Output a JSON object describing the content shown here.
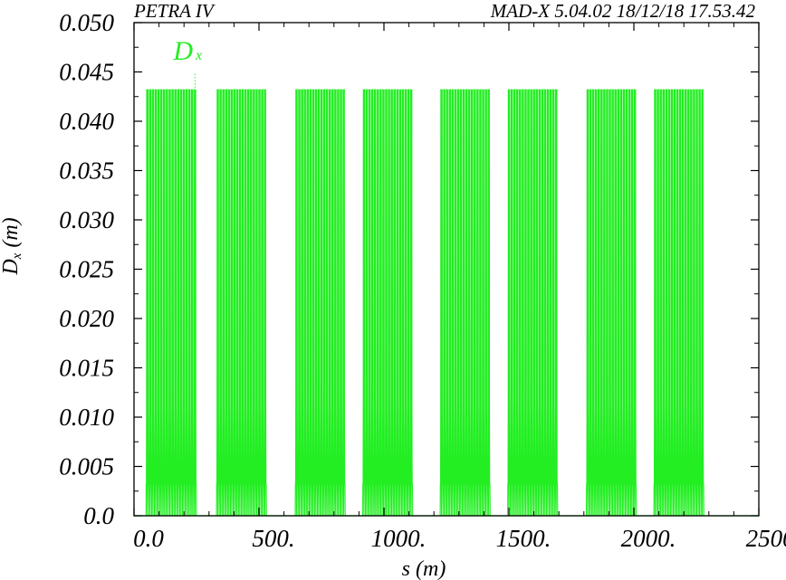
{
  "header": {
    "left": "PETRA IV",
    "right": "MAD-X 5.04.02  18/12/18 17.53.42"
  },
  "chart_data": {
    "type": "line",
    "title": "",
    "xlabel": "s (m)",
    "ylabel": "Dx (m)",
    "xlim": [
      0,
      2500
    ],
    "ylim": [
      0,
      0.05
    ],
    "x_ticks": [
      0,
      500,
      1000,
      1500,
      2000,
      2500
    ],
    "x_tick_labels": [
      "0.0",
      "500.",
      "1000.",
      "1500.",
      "2000.",
      "2500."
    ],
    "y_ticks": [
      0.0,
      0.005,
      0.01,
      0.015,
      0.02,
      0.025,
      0.03,
      0.035,
      0.04,
      0.045,
      0.05
    ],
    "y_tick_labels": [
      "0.0",
      "0.005",
      "0.010",
      "0.015",
      "0.020",
      "0.025",
      "0.030",
      "0.035",
      "0.040",
      "0.045",
      "0.050"
    ],
    "grid": false,
    "legend": {
      "position": "top-left",
      "marker_s": 244
    },
    "series": [
      {
        "name": "Dx",
        "color": "#22ee22",
        "peak_value": 0.0432,
        "mid_value": 0.0113,
        "low_value": 0.0032,
        "arcs": [
          {
            "start": 48,
            "end": 250,
            "cells": 18
          },
          {
            "start": 330,
            "end": 530,
            "cells": 18
          },
          {
            "start": 645,
            "end": 845,
            "cells": 18
          },
          {
            "start": 915,
            "end": 1115,
            "cells": 18
          },
          {
            "start": 1225,
            "end": 1425,
            "cells": 18
          },
          {
            "start": 1495,
            "end": 1695,
            "cells": 18
          },
          {
            "start": 1810,
            "end": 2010,
            "cells": 18
          },
          {
            "start": 2080,
            "end": 2280,
            "cells": 18
          }
        ]
      }
    ]
  }
}
